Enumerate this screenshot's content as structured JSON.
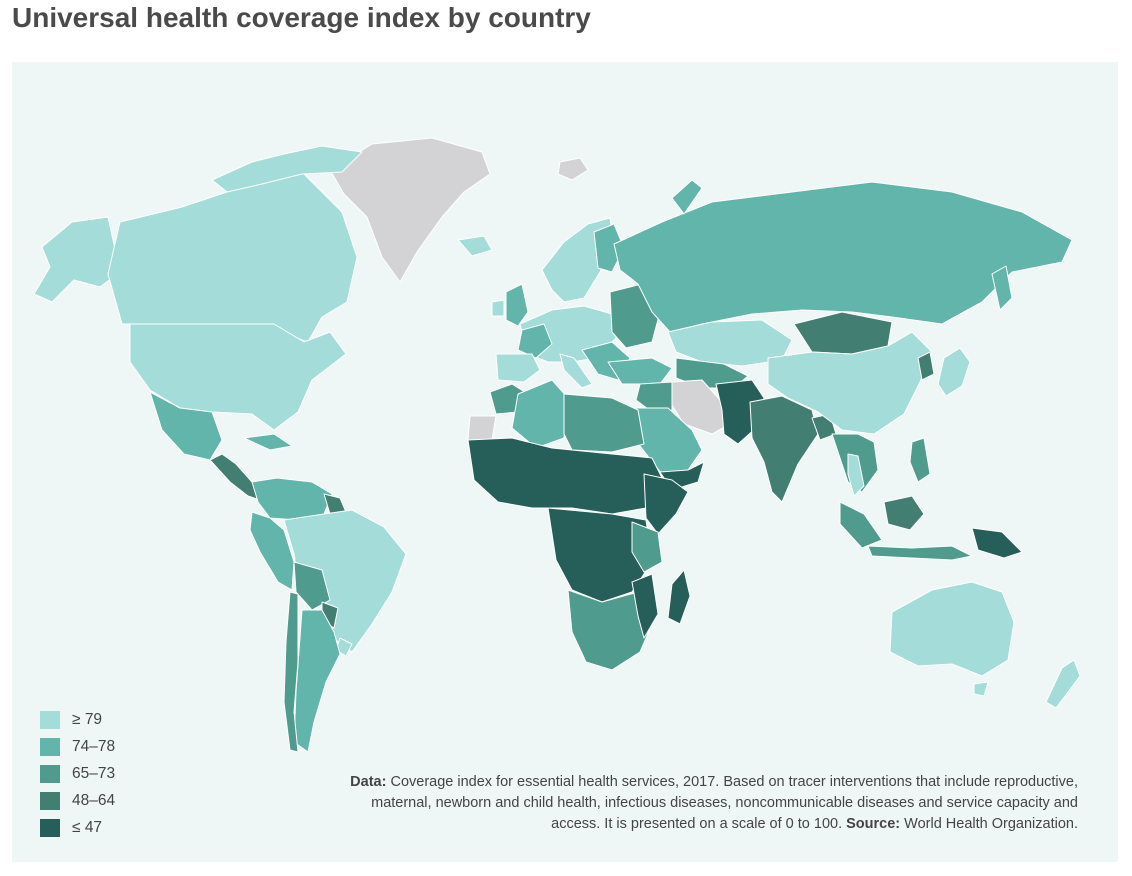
{
  "title": "Universal health coverage index by country",
  "colors": {
    "c1": "#a3dcd9",
    "c2": "#61b5ab",
    "c3": "#4f9c8f",
    "c4": "#437e73",
    "c5": "#265e5a",
    "nodata": "#d3d3d5",
    "ocean": "#eef7f5",
    "border": "#ffffff"
  },
  "legend": {
    "items": [
      {
        "label": "≥ 79",
        "color": "#a3dcd9"
      },
      {
        "label": "74–78",
        "color": "#61b5ab"
      },
      {
        "label": "65–73",
        "color": "#4f9c8f"
      },
      {
        "label": "48–64",
        "color": "#437e73"
      },
      {
        "label": "≤ 47",
        "color": "#265e5a"
      }
    ]
  },
  "note": {
    "data_label": "Data:",
    "data_text": " Coverage index for essential health services, 2017. Based on tracer interventions that include reproductive, maternal, newborn and child health, infectious diseases, noncommunicable diseases and service capacity and access. It is presented on a scale of 0 to 100. ",
    "source_label": "Source:",
    "source_text": " World Health Organization."
  }
}
